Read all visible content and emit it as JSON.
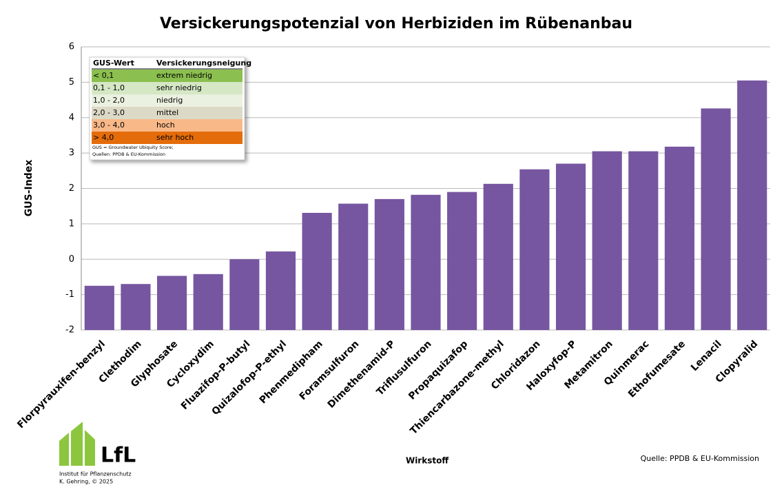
{
  "chart_data": {
    "type": "bar",
    "title": "Versickerungspotenzial von Herbiziden im Rübenanbau",
    "y_label": "GUS-Index",
    "x_label": "Wirkstoff",
    "source": "Quelle: PPDB & EU-Kommission",
    "categories": [
      "Florpyrauxifen-benzyl",
      "Clethodim",
      "Glyphosate",
      "Cycloxydim",
      "Fluazifop-P-butyl",
      "Quizalofop-P-ethyl",
      "Phenmedipham",
      "Foramsulfuron",
      "Dimethenamid-P",
      "Triflusulfuron",
      "Propaquizafop",
      "Thiencarbazone-methyl",
      "Chloridazon",
      "Haloxyfop-P",
      "Metamitron",
      "Quinmerac",
      "Ethofumesate",
      "Lenacil",
      "Clopyralid"
    ],
    "values": [
      -0.75,
      -0.7,
      -0.47,
      -0.42,
      0.0,
      0.22,
      1.31,
      1.57,
      1.7,
      1.82,
      1.9,
      2.13,
      2.54,
      2.7,
      3.05,
      3.05,
      3.18,
      4.26,
      5.05
    ],
    "color": "#7656a0",
    "ylim": [
      -2,
      6
    ],
    "yticks": [
      -2,
      -1,
      0,
      1,
      2,
      3,
      4,
      5,
      6
    ],
    "grid": true,
    "legend_table": {
      "header": [
        "GUS-Wert",
        "Versickerungsneigung"
      ],
      "rows": [
        {
          "range": "< 0,1",
          "class": "extrem niedrig",
          "color": "#8bbf4f"
        },
        {
          "range": "0,1 - 1,0",
          "class": "sehr niedrig",
          "color": "#d5e7c4"
        },
        {
          "range": "1,0 - 2,0",
          "class": "niedrig",
          "color": "#eaf1e0"
        },
        {
          "range": "2,0 - 3,0",
          "class": "mittel",
          "color": "#ddd9c7"
        },
        {
          "range": "3,0 - 4,0",
          "class": "hoch",
          "color": "#f8b888"
        },
        {
          "range": "> 4,0",
          "class": "sehr hoch",
          "color": "#e46c0a"
        }
      ],
      "notes": [
        "GUS = Groundwater Ubiquity Score;",
        "Quellen: PPDB & EU-Kommission"
      ]
    }
  },
  "logo": {
    "name": "LfL",
    "institute": "Institut für Pflanzenschutz",
    "author": "K. Gehring, © 2025"
  }
}
